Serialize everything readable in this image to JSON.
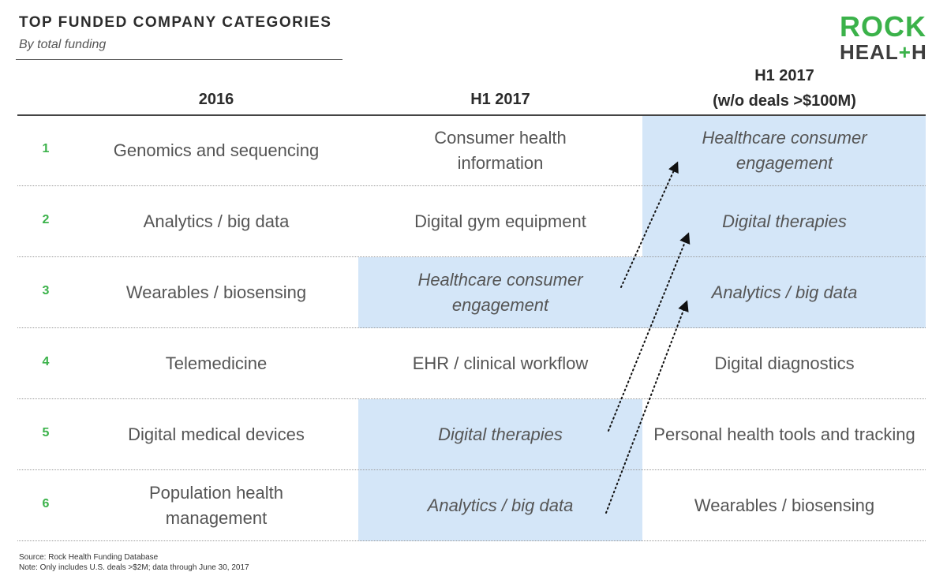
{
  "header": {
    "title": "TOP FUNDED COMPANY CATEGORIES",
    "subtitle": "By total funding",
    "logo_line1": "ROCK",
    "logo_line2_a": "HEAL",
    "logo_line2_plus": "+",
    "logo_line2_b": "H"
  },
  "chart_data": {
    "type": "table",
    "columns": [
      "2016",
      "H1 2017",
      "H1 2017\n(w/o deals >$100M)"
    ],
    "column_header_lines": [
      [
        "2016"
      ],
      [
        "H1 2017"
      ],
      [
        "H1 2017",
        "(w/o deals >$100M)"
      ]
    ],
    "rows": [
      {
        "rank": "1",
        "cells": [
          "Genomics and sequencing",
          "Consumer health information",
          "Healthcare consumer engagement"
        ],
        "italic": [
          false,
          false,
          true
        ],
        "highlight": [
          false,
          false,
          true
        ]
      },
      {
        "rank": "2",
        "cells": [
          "Analytics / big data",
          "Digital gym equipment",
          "Digital therapies"
        ],
        "italic": [
          false,
          false,
          true
        ],
        "highlight": [
          false,
          false,
          true
        ]
      },
      {
        "rank": "3",
        "cells": [
          "Wearables / biosensing",
          "Healthcare consumer engagement",
          "Analytics / big data"
        ],
        "italic": [
          false,
          true,
          true
        ],
        "highlight": [
          false,
          true,
          true
        ]
      },
      {
        "rank": "4",
        "cells": [
          "Telemedicine",
          "EHR / clinical workflow",
          "Digital diagnostics"
        ],
        "italic": [
          false,
          false,
          false
        ],
        "highlight": [
          false,
          false,
          false
        ]
      },
      {
        "rank": "5",
        "cells": [
          "Digital medical devices",
          "Digital therapies",
          "Personal health tools and tracking"
        ],
        "italic": [
          false,
          true,
          false
        ],
        "highlight": [
          false,
          true,
          false
        ]
      },
      {
        "rank": "6",
        "cells": [
          "Population health management",
          "Analytics / big data",
          "Wearables / biosensing"
        ],
        "italic": [
          false,
          true,
          false
        ],
        "highlight": [
          false,
          true,
          false
        ]
      }
    ],
    "arrows": [
      {
        "from": "H1 2017 rank 3",
        "to": "w/o deals rank 1"
      },
      {
        "from": "H1 2017 rank 5",
        "to": "w/o deals rank 2"
      },
      {
        "from": "H1 2017 rank 6",
        "to": "w/o deals rank 3"
      }
    ],
    "colors": {
      "highlight": "#d4e6f8",
      "rank": "#3bb24a",
      "text": "#555555",
      "logo_green": "#3bb24a",
      "logo_dark": "#3d3d3d"
    }
  },
  "footer": {
    "source": "Source: Rock Health Funding Database",
    "note": "Note: Only includes U.S. deals >$2M; data through June 30, 2017"
  }
}
